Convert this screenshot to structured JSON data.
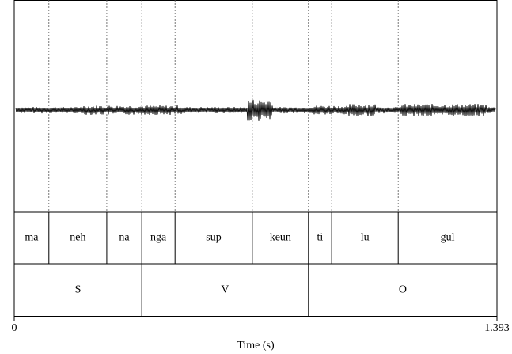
{
  "chart_data": {
    "type": "textgrid",
    "xlabel": "Time (s)",
    "xlim": [
      0,
      1.393
    ],
    "xticks": [
      0,
      1.393
    ],
    "tiers": [
      {
        "boundaries": [
          0.1,
          0.267,
          0.368,
          0.464,
          0.687,
          0.849,
          0.916,
          1.108
        ],
        "labels": [
          "ma",
          "neh",
          "na",
          "nga",
          "sup",
          "keun",
          "ti",
          "lu",
          "gul"
        ]
      },
      {
        "boundaries": [
          0.368,
          0.849
        ],
        "labels": [
          "S",
          "V",
          "O"
        ]
      }
    ]
  }
}
